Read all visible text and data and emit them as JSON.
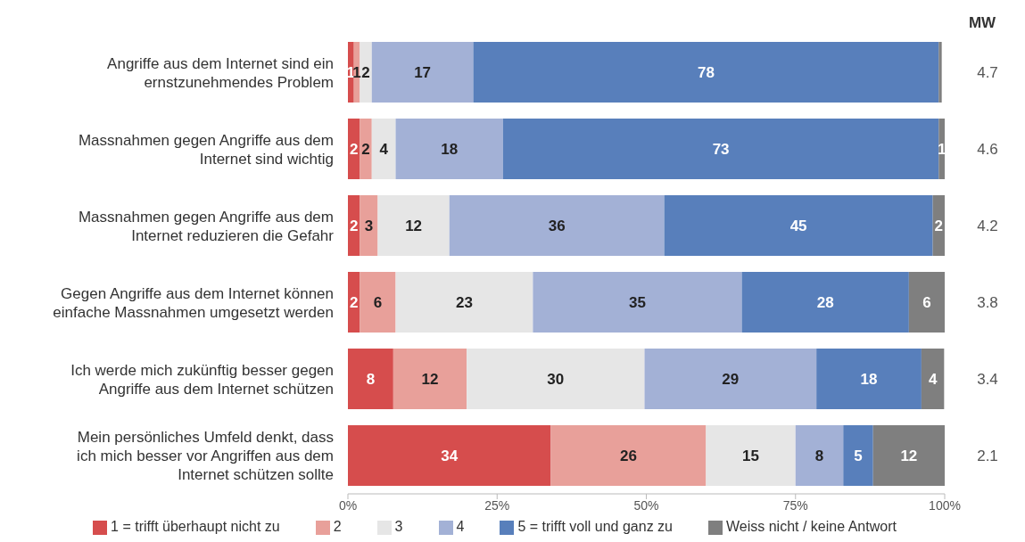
{
  "chart_data": {
    "type": "bar",
    "orientation": "horizontal",
    "stacked": true,
    "categories": [
      "Angriffe aus dem Internet sind ein ernstzunehmendes Problem",
      "Massnahmen gegen Angriffe aus dem Internet sind wichtig",
      "Massnahmen gegen Angriffe aus dem Internet reduzieren die Gefahr",
      "Gegen Angriffe aus dem Internet können einfache Massnahmen umgesetzt werden",
      "Ich werde mich zukünftig besser gegen Angriffe aus dem Internet schützen",
      "Mein persönliches Umfeld denkt, dass ich mich besser vor Angriffen aus dem Internet schützen sollte"
    ],
    "series": [
      {
        "name": "1 = trifft überhaupt nicht zu",
        "color": "#d64d4d",
        "values": [
          1,
          2,
          2,
          2,
          7.6,
          34
        ],
        "value_labels": [
          "1",
          "2",
          "2",
          "2",
          "8",
          "34"
        ]
      },
      {
        "name": "2",
        "color": "#e8a09a",
        "values": [
          1,
          2,
          3,
          6,
          12.3,
          26
        ],
        "value_labels": [
          "1",
          "2",
          "3",
          "6",
          "12",
          "26"
        ]
      },
      {
        "name": "3",
        "color": "#e6e6e6",
        "values": [
          2,
          4,
          12,
          23,
          29.8,
          15
        ],
        "value_labels": [
          "2",
          "4",
          "12",
          "23",
          "30",
          "15"
        ]
      },
      {
        "name": "4",
        "color": "#a3b1d6",
        "values": [
          17,
          18,
          36,
          35,
          28.8,
          8
        ],
        "value_labels": [
          "17",
          "18",
          "36",
          "35",
          "29",
          "8"
        ]
      },
      {
        "name": "5 = trifft voll und ganz zu",
        "color": "#587fbb",
        "values": [
          78,
          73,
          45,
          28,
          17.6,
          5
        ],
        "value_labels": [
          "78",
          "73",
          "45",
          "28",
          "18",
          "5"
        ]
      },
      {
        "name": "Weiss nicht / keine Antwort",
        "color": "#7f7f7f",
        "values": [
          0.5,
          1,
          2,
          6,
          3.8,
          12
        ],
        "value_labels": [
          null,
          "1",
          "2",
          "6",
          "4",
          "12"
        ]
      }
    ],
    "xlim": [
      0,
      100
    ],
    "xticks": [
      {
        "value": 0,
        "label": "0%"
      },
      {
        "value": 25,
        "label": "25%"
      },
      {
        "value": 50,
        "label": "50%"
      },
      {
        "value": 75,
        "label": "75%"
      },
      {
        "value": 100,
        "label": "100%"
      }
    ],
    "annotations": [
      "MW",
      "4.7",
      "4.6",
      "4.2",
      "3.8",
      "3.4",
      "2.1"
    ],
    "legend": "bottom"
  }
}
